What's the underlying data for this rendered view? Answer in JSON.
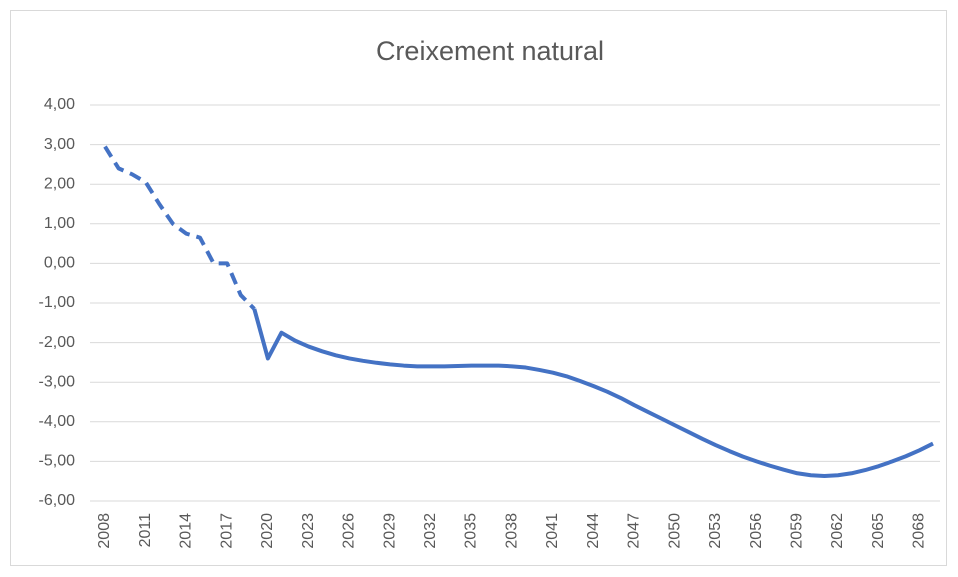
{
  "chart_data": {
    "type": "line",
    "title": "Creixement natural",
    "x": [
      2008,
      2009,
      2010,
      2011,
      2012,
      2013,
      2014,
      2015,
      2016,
      2017,
      2018,
      2019,
      2020,
      2021,
      2022,
      2023,
      2024,
      2025,
      2026,
      2027,
      2028,
      2029,
      2030,
      2031,
      2032,
      2033,
      2034,
      2035,
      2036,
      2037,
      2038,
      2039,
      2040,
      2041,
      2042,
      2043,
      2044,
      2045,
      2046,
      2047,
      2048,
      2049,
      2050,
      2051,
      2052,
      2053,
      2054,
      2055,
      2056,
      2057,
      2058,
      2059,
      2060,
      2061,
      2062,
      2063,
      2064,
      2065,
      2066,
      2067,
      2068,
      2069
    ],
    "series": [
      {
        "color": "#4472c4",
        "style": "dashed",
        "values": [
          2.95,
          2.4,
          2.25,
          2.05,
          1.5,
          1.0,
          0.75,
          0.65,
          0.0,
          0.0,
          -0.8,
          -1.15,
          null,
          null,
          null,
          null,
          null,
          null,
          null,
          null,
          null,
          null,
          null,
          null,
          null,
          null,
          null,
          null,
          null,
          null,
          null,
          null,
          null,
          null,
          null,
          null,
          null,
          null,
          null,
          null,
          null,
          null,
          null,
          null,
          null,
          null,
          null,
          null,
          null,
          null,
          null,
          null,
          null,
          null,
          null,
          null,
          null,
          null,
          null,
          null,
          null,
          null
        ]
      },
      {
        "color": "#4472c4",
        "style": "solid",
        "values": [
          null,
          null,
          null,
          null,
          null,
          null,
          null,
          null,
          null,
          null,
          null,
          -1.15,
          -2.4,
          -1.75,
          -1.95,
          -2.1,
          -2.22,
          -2.32,
          -2.4,
          -2.46,
          -2.51,
          -2.55,
          -2.58,
          -2.6,
          -2.6,
          -2.6,
          -2.59,
          -2.58,
          -2.58,
          -2.58,
          -2.6,
          -2.63,
          -2.69,
          -2.76,
          -2.85,
          -2.97,
          -3.1,
          -3.24,
          -3.4,
          -3.58,
          -3.75,
          -3.92,
          -4.09,
          -4.26,
          -4.43,
          -4.59,
          -4.74,
          -4.88,
          -5.0,
          -5.11,
          -5.21,
          -5.3,
          -5.35,
          -5.37,
          -5.35,
          -5.3,
          -5.22,
          -5.12,
          -5.0,
          -4.87,
          -4.72,
          -4.55
        ]
      }
    ],
    "xlim": [
      2008,
      2069
    ],
    "xticks": [
      2008,
      2011,
      2014,
      2017,
      2020,
      2023,
      2026,
      2029,
      2032,
      2035,
      2038,
      2041,
      2044,
      2047,
      2050,
      2053,
      2056,
      2059,
      2062,
      2065,
      2068
    ],
    "ylim": [
      -6,
      4
    ],
    "yticks": [
      {
        "value": -6,
        "label": "-6,00"
      },
      {
        "value": -5,
        "label": "-5,00"
      },
      {
        "value": -4,
        "label": "-4,00"
      },
      {
        "value": -3,
        "label": "-3,00"
      },
      {
        "value": -2,
        "label": "-2,00"
      },
      {
        "value": -1,
        "label": "-1,00"
      },
      {
        "value": 0,
        "label": "0,00"
      },
      {
        "value": 1,
        "label": "1,00"
      },
      {
        "value": 2,
        "label": "2,00"
      },
      {
        "value": 3,
        "label": "3,00"
      },
      {
        "value": 4,
        "label": "4,00"
      }
    ],
    "grid": true
  }
}
